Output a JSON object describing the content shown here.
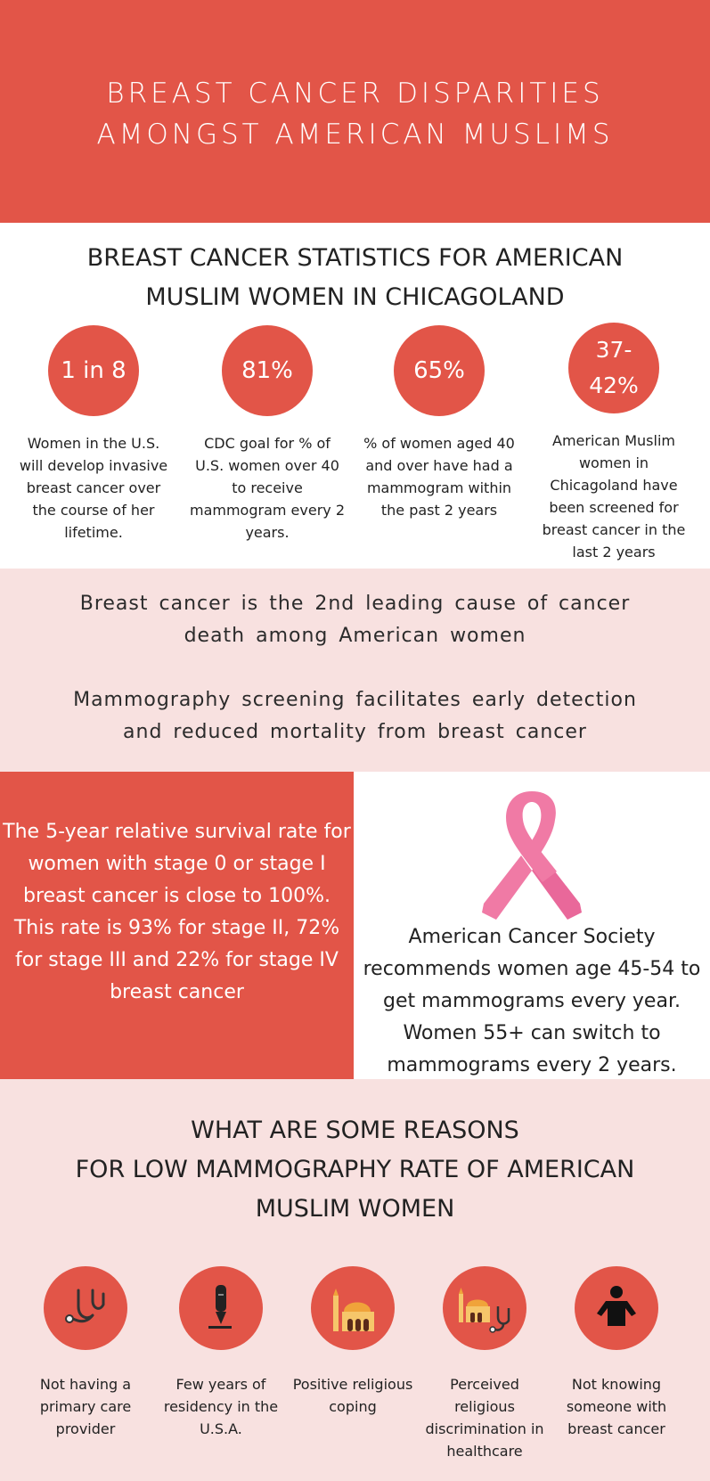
{
  "header": {
    "title_line1": "BREAST CANCER DISPARITIES",
    "title_line2": "AMONGST AMERICAN MUSLIMS"
  },
  "stats": {
    "title_line1": "BREAST CANCER STATISTICS FOR AMERICAN",
    "title_line2": "MUSLIM WOMEN IN CHICAGOLAND",
    "items": [
      {
        "value": "1 in 8",
        "desc": "Women in the U.S. will develop invasive breast cancer over the course of her lifetime."
      },
      {
        "value": "81%",
        "desc": "CDC goal for % of U.S. women over 40 to receive mammogram every 2 years."
      },
      {
        "value": "65%",
        "desc": "% of women aged 40 and over have had a mammogram within the past 2 years"
      },
      {
        "value": "37-42%",
        "desc": "American Muslim women in Chicagoland have been screened for breast cancer in the last 2 years"
      }
    ]
  },
  "facts": {
    "fact1": "Breast cancer is the 2nd leading cause of cancer death among American women",
    "fact2": "Mammography screening facilitates early detection and reduced mortality from breast cancer"
  },
  "survival": {
    "text": "The 5-year relative survival rate for women with stage 0 or stage I breast cancer is close to 100%. This rate is 93% for stage II, 72% for stage III and 22% for stage IV breast cancer"
  },
  "acs": {
    "text": "American Cancer Society recommends women age 45-54 to get mammograms every year. Women 55+ can switch to mammograms every 2 years.",
    "icon": "pink-ribbon-icon",
    "ribbon_color": "#f07aa5"
  },
  "reasons": {
    "title_line1": "WHAT ARE SOME REASONS",
    "title_line2": "FOR LOW MAMMOGRAPHY RATE OF AMERICAN",
    "title_line3": "MUSLIM WOMEN",
    "items": [
      {
        "label": "Not having a primary care provider",
        "icon": "stethoscope-icon"
      },
      {
        "label": "Few years of residency in the U.S.A.",
        "icon": "pen-icon"
      },
      {
        "label": "Positive religious coping",
        "icon": "mosque-icon"
      },
      {
        "label": "Perceived religious discrimination in healthcare",
        "icon": "mosque-stethoscope-icon"
      },
      {
        "label": "Not knowing someone with breast cancer",
        "icon": "person-icon"
      }
    ]
  },
  "colors": {
    "accent": "#e25548",
    "light_pink": "#f8e1e0"
  }
}
